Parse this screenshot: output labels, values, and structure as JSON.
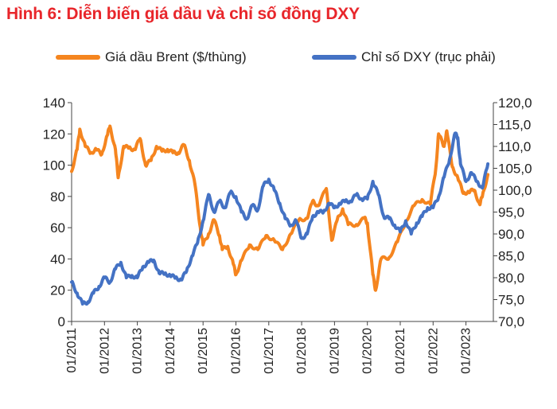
{
  "title": "Hình 6: Diễn biến giá dầu và chỉ số đồng DXY",
  "chart_data": {
    "type": "line",
    "series": [
      {
        "name": "Giá dầu Brent ($/thùng)",
        "axis": "left",
        "color": "#f5851f",
        "points": [
          [
            "2011-01",
            96
          ],
          [
            "2011-03",
            110
          ],
          [
            "2011-04",
            123
          ],
          [
            "2011-06",
            112
          ],
          [
            "2011-08",
            108
          ],
          [
            "2011-10",
            110
          ],
          [
            "2011-12",
            107
          ],
          [
            "2012-02",
            119
          ],
          [
            "2012-03",
            125
          ],
          [
            "2012-05",
            110
          ],
          [
            "2012-06",
            92
          ],
          [
            "2012-08",
            112
          ],
          [
            "2012-10",
            111
          ],
          [
            "2012-12",
            110
          ],
          [
            "2013-02",
            117
          ],
          [
            "2013-04",
            100
          ],
          [
            "2013-06",
            103
          ],
          [
            "2013-08",
            112
          ],
          [
            "2013-10",
            109
          ],
          [
            "2013-12",
            110
          ],
          [
            "2014-02",
            108
          ],
          [
            "2014-04",
            108
          ],
          [
            "2014-06",
            113
          ],
          [
            "2014-08",
            103
          ],
          [
            "2014-10",
            88
          ],
          [
            "2014-12",
            60
          ],
          [
            "2015-01",
            49
          ],
          [
            "2015-03",
            56
          ],
          [
            "2015-05",
            65
          ],
          [
            "2015-07",
            55
          ],
          [
            "2015-08",
            46
          ],
          [
            "2015-10",
            48
          ],
          [
            "2015-12",
            37
          ],
          [
            "2016-01",
            30
          ],
          [
            "2016-03",
            39
          ],
          [
            "2016-06",
            49
          ],
          [
            "2016-09",
            46
          ],
          [
            "2016-12",
            55
          ],
          [
            "2017-03",
            52
          ],
          [
            "2017-06",
            46
          ],
          [
            "2017-09",
            56
          ],
          [
            "2017-12",
            65
          ],
          [
            "2018-03",
            66
          ],
          [
            "2018-05",
            77
          ],
          [
            "2018-07",
            74
          ],
          [
            "2018-10",
            85
          ],
          [
            "2018-12",
            52
          ],
          [
            "2019-02",
            65
          ],
          [
            "2019-04",
            72
          ],
          [
            "2019-06",
            62
          ],
          [
            "2019-09",
            62
          ],
          [
            "2019-12",
            66
          ],
          [
            "2020-01",
            63
          ],
          [
            "2020-03",
            30
          ],
          [
            "2020-04",
            20
          ],
          [
            "2020-06",
            40
          ],
          [
            "2020-09",
            41
          ],
          [
            "2020-12",
            51
          ],
          [
            "2021-03",
            64
          ],
          [
            "2021-06",
            74
          ],
          [
            "2021-09",
            78
          ],
          [
            "2021-12",
            75
          ],
          [
            "2022-02",
            98
          ],
          [
            "2022-03",
            120
          ],
          [
            "2022-05",
            112
          ],
          [
            "2022-06",
            122
          ],
          [
            "2022-08",
            99
          ],
          [
            "2022-10",
            92
          ],
          [
            "2022-12",
            82
          ],
          [
            "2023-02",
            83
          ],
          [
            "2023-04",
            84
          ],
          [
            "2023-06",
            75
          ],
          [
            "2023-07",
            80
          ],
          [
            "2023-09",
            94
          ]
        ]
      },
      {
        "name": "Chỉ số DXY (trục phải)",
        "axis": "right",
        "color": "#4472c4",
        "points": [
          [
            "2011-01",
            79
          ],
          [
            "2011-03",
            76.5
          ],
          [
            "2011-05",
            74
          ],
          [
            "2011-07",
            74.5
          ],
          [
            "2011-09",
            76.5
          ],
          [
            "2011-11",
            78
          ],
          [
            "2012-01",
            80
          ],
          [
            "2012-03",
            79
          ],
          [
            "2012-05",
            82
          ],
          [
            "2012-07",
            83.5
          ],
          [
            "2012-09",
            80
          ],
          [
            "2012-11",
            80.5
          ],
          [
            "2013-01",
            80
          ],
          [
            "2013-03",
            82.5
          ],
          [
            "2013-05",
            83.5
          ],
          [
            "2013-07",
            84
          ],
          [
            "2013-09",
            81
          ],
          [
            "2013-11",
            81
          ],
          [
            "2014-01",
            80.5
          ],
          [
            "2014-03",
            80
          ],
          [
            "2014-05",
            79.5
          ],
          [
            "2014-07",
            81.5
          ],
          [
            "2014-09",
            85
          ],
          [
            "2014-11",
            88
          ],
          [
            "2015-01",
            93
          ],
          [
            "2015-03",
            99
          ],
          [
            "2015-05",
            95
          ],
          [
            "2015-07",
            97.5
          ],
          [
            "2015-09",
            96
          ],
          [
            "2015-11",
            99.5
          ],
          [
            "2016-01",
            98.5
          ],
          [
            "2016-03",
            95
          ],
          [
            "2016-05",
            93.5
          ],
          [
            "2016-07",
            96.5
          ],
          [
            "2016-09",
            95.5
          ],
          [
            "2016-11",
            101
          ],
          [
            "2017-01",
            102.5
          ],
          [
            "2017-03",
            100
          ],
          [
            "2017-05",
            97
          ],
          [
            "2017-07",
            93.5
          ],
          [
            "2017-09",
            92
          ],
          [
            "2017-11",
            93
          ],
          [
            "2018-01",
            89
          ],
          [
            "2018-03",
            90
          ],
          [
            "2018-05",
            94
          ],
          [
            "2018-07",
            95
          ],
          [
            "2018-09",
            95
          ],
          [
            "2018-11",
            97
          ],
          [
            "2019-01",
            96
          ],
          [
            "2019-03",
            97
          ],
          [
            "2019-05",
            97.5
          ],
          [
            "2019-07",
            97.5
          ],
          [
            "2019-09",
            99
          ],
          [
            "2019-11",
            98
          ],
          [
            "2020-01",
            98
          ],
          [
            "2020-03",
            102
          ],
          [
            "2020-05",
            99
          ],
          [
            "2020-07",
            94
          ],
          [
            "2020-09",
            93.5
          ],
          [
            "2020-11",
            92
          ],
          [
            "2021-01",
            90.5
          ],
          [
            "2021-03",
            93
          ],
          [
            "2021-05",
            90
          ],
          [
            "2021-07",
            92.5
          ],
          [
            "2021-09",
            94
          ],
          [
            "2021-11",
            96
          ],
          [
            "2022-01",
            96
          ],
          [
            "2022-03",
            98.5
          ],
          [
            "2022-05",
            103
          ],
          [
            "2022-07",
            107
          ],
          [
            "2022-09",
            113
          ],
          [
            "2022-10",
            112
          ],
          [
            "2022-11",
            106
          ],
          [
            "2023-01",
            102
          ],
          [
            "2023-03",
            104
          ],
          [
            "2023-05",
            102
          ],
          [
            "2023-07",
            100.5
          ],
          [
            "2023-09",
            106
          ]
        ]
      }
    ],
    "left_axis": {
      "min": 0,
      "max": 140,
      "ticks": [
        "0",
        "20",
        "40",
        "60",
        "80",
        "100",
        "120",
        "140"
      ]
    },
    "right_axis": {
      "min": 70,
      "max": 120,
      "ticks": [
        "70,0",
        "75,0",
        "80,0",
        "85,0",
        "90,0",
        "95,0",
        "100,0",
        "105,0",
        "110,0",
        "115,0",
        "120,0"
      ]
    },
    "x_axis": {
      "range": [
        "2011-01",
        "2023-11"
      ],
      "tick_labels": [
        "01/2011",
        "01/2012",
        "01/2013",
        "01/2014",
        "01/2015",
        "01/2016",
        "01/2017",
        "01/2018",
        "01/2019",
        "01/2020",
        "01/2021",
        "01/2022",
        "01/2023"
      ]
    },
    "grid": false,
    "legend_position": "top"
  }
}
